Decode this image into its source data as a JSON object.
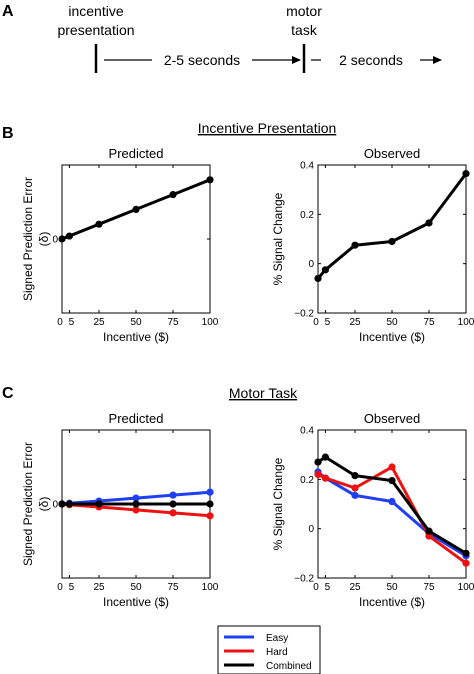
{
  "panels": {
    "a": "A",
    "b": "B",
    "c": "C"
  },
  "timeline": {
    "event1": [
      "incentive",
      "presentation"
    ],
    "event2": [
      "motor",
      "task"
    ],
    "interval1": "2-5 seconds",
    "interval2": "2 seconds"
  },
  "section_b_title": "Incentive Presentation",
  "section_c_title": "Motor Task",
  "legend": [
    {
      "name": "Easy",
      "color": "#1f3ff5"
    },
    {
      "name": "Hard",
      "color": "#ee1111"
    },
    {
      "name": "Combined",
      "color": "#000000"
    }
  ],
  "chart_data": [
    {
      "type": "line",
      "title": "Predicted",
      "xlabel": "Incentive ($)",
      "ylabel": [
        "Signed Prediction Error",
        "(δ)"
      ],
      "x": [
        0,
        5,
        25,
        50,
        75,
        100
      ],
      "xticks": [
        "0",
        "5",
        "25",
        "50",
        "75",
        "100"
      ],
      "xlim": [
        0,
        100
      ],
      "ylim": [
        0,
        1
      ],
      "yticks": [
        {
          "value": 0.5,
          "label": "0"
        }
      ],
      "grid": false,
      "series": [
        {
          "color": "#000000",
          "values": [
            0.5,
            0.52,
            0.6,
            0.7,
            0.8,
            0.9
          ]
        }
      ]
    },
    {
      "type": "line",
      "title": "Observed",
      "xlabel": "Incentive ($)",
      "ylabel": [
        "% Signal Change"
      ],
      "x": [
        0,
        5,
        25,
        50,
        75,
        100
      ],
      "xticks": [
        "0",
        "5",
        "25",
        "50",
        "75",
        "100"
      ],
      "xlim": [
        0,
        100
      ],
      "ylim": [
        -0.2,
        0.4
      ],
      "yticks": [
        {
          "value": -0.2,
          "label": "−0.2"
        },
        {
          "value": 0,
          "label": "0"
        },
        {
          "value": 0.2,
          "label": "0.2"
        },
        {
          "value": 0.4,
          "label": "0.4"
        }
      ],
      "grid": false,
      "series": [
        {
          "color": "#000000",
          "values": [
            -0.06,
            -0.025,
            0.075,
            0.09,
            0.165,
            0.365
          ]
        }
      ]
    },
    {
      "type": "line",
      "title": "Predicted",
      "xlabel": "Incentive ($)",
      "ylabel": [
        "Signed Prediction Error",
        "(δ)"
      ],
      "x": [
        0,
        5,
        25,
        50,
        75,
        100
      ],
      "xticks": [
        "0",
        "5",
        "25",
        "50",
        "75",
        "100"
      ],
      "xlim": [
        0,
        100
      ],
      "ylim": [
        0,
        1
      ],
      "yticks": [
        {
          "value": 0.5,
          "label": "0"
        }
      ],
      "grid": false,
      "series": [
        {
          "name": "Easy",
          "color": "#1f3ff5",
          "values": [
            0.5,
            0.505,
            0.52,
            0.54,
            0.56,
            0.58
          ]
        },
        {
          "name": "Hard",
          "color": "#ee1111",
          "values": [
            0.5,
            0.495,
            0.48,
            0.46,
            0.44,
            0.42
          ]
        },
        {
          "name": "Combined",
          "color": "#000000",
          "values": [
            0.5,
            0.5,
            0.5,
            0.5,
            0.5,
            0.5
          ]
        }
      ]
    },
    {
      "type": "line",
      "title": "Observed",
      "xlabel": "Incentive ($)",
      "ylabel": [
        "% Signal Change"
      ],
      "x": [
        0,
        5,
        25,
        50,
        75,
        100
      ],
      "xticks": [
        "0",
        "5",
        "25",
        "50",
        "75",
        "100"
      ],
      "xlim": [
        0,
        100
      ],
      "ylim": [
        -0.2,
        0.4
      ],
      "yticks": [
        {
          "value": -0.2,
          "label": "−0.2"
        },
        {
          "value": 0,
          "label": "0"
        },
        {
          "value": 0.2,
          "label": "0.2"
        },
        {
          "value": 0.4,
          "label": "0.4"
        }
      ],
      "grid": false,
      "series": [
        {
          "name": "Easy",
          "color": "#1f3ff5",
          "values": [
            0.23,
            0.205,
            0.135,
            0.11,
            -0.02,
            -0.11
          ]
        },
        {
          "name": "Hard",
          "color": "#ee1111",
          "values": [
            0.22,
            0.205,
            0.165,
            0.25,
            -0.03,
            -0.14
          ]
        },
        {
          "name": "Combined",
          "color": "#000000",
          "values": [
            0.27,
            0.29,
            0.215,
            0.195,
            -0.01,
            -0.1
          ]
        }
      ]
    }
  ]
}
